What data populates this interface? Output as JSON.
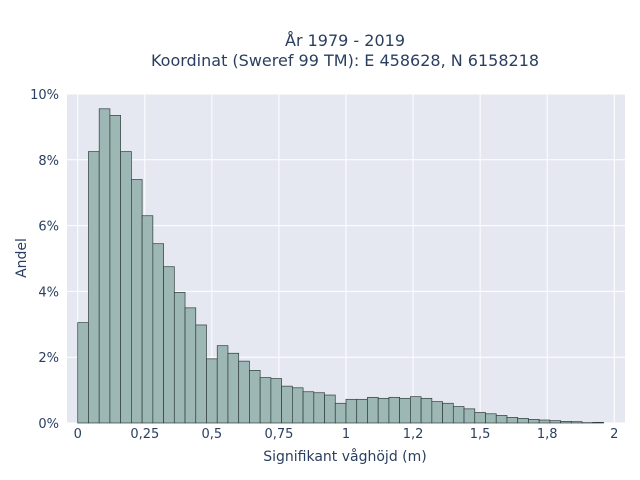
{
  "chart_data": {
    "type": "bar",
    "title": "År 1979 - 2019",
    "subtitle": "Koordinat (Sweref 99 TM): E 458628, N 6158218",
    "xlabel": "Signifikant våghöjd (m)",
    "ylabel": "Andel",
    "xlim": [
      -0.04,
      2.04
    ],
    "ylim": [
      0,
      10
    ],
    "bin_width": 0.04,
    "x_ticks": [
      0,
      0.25,
      0.5,
      0.75,
      1,
      1.25,
      1.5,
      1.75,
      2
    ],
    "x_tick_labels": [
      "0",
      "0,25",
      "0,5",
      "0,75",
      "1",
      "1,2",
      "1,5",
      "1,8",
      "2"
    ],
    "y_ticks": [
      0,
      2,
      4,
      6,
      8,
      10
    ],
    "y_tick_labels": [
      "0%",
      "2%",
      "4%",
      "6%",
      "8%",
      "10%"
    ],
    "grid": true,
    "bin_starts": [
      0.0,
      0.04,
      0.08,
      0.12,
      0.16,
      0.2,
      0.24,
      0.28,
      0.32,
      0.36,
      0.4,
      0.44,
      0.48,
      0.52,
      0.56,
      0.6,
      0.64,
      0.68,
      0.72,
      0.76,
      0.8,
      0.84,
      0.88,
      0.92,
      0.96,
      1.0,
      1.04,
      1.08,
      1.12,
      1.16,
      1.2,
      1.24,
      1.28,
      1.32,
      1.36,
      1.4,
      1.44,
      1.48,
      1.52,
      1.56,
      1.6,
      1.64,
      1.68,
      1.72,
      1.76,
      1.8,
      1.84,
      1.88,
      1.92,
      1.96
    ],
    "values": [
      3.05,
      8.25,
      9.55,
      9.35,
      8.25,
      7.4,
      6.3,
      5.45,
      4.75,
      3.97,
      3.5,
      2.98,
      1.95,
      2.35,
      2.12,
      1.88,
      1.6,
      1.38,
      1.35,
      1.12,
      1.07,
      0.95,
      0.92,
      0.85,
      0.6,
      0.72,
      0.72,
      0.78,
      0.75,
      0.78,
      0.75,
      0.8,
      0.75,
      0.65,
      0.6,
      0.5,
      0.43,
      0.32,
      0.28,
      0.23,
      0.17,
      0.14,
      0.11,
      0.09,
      0.07,
      0.05,
      0.04,
      0.01,
      0.02,
      0.0
    ]
  }
}
